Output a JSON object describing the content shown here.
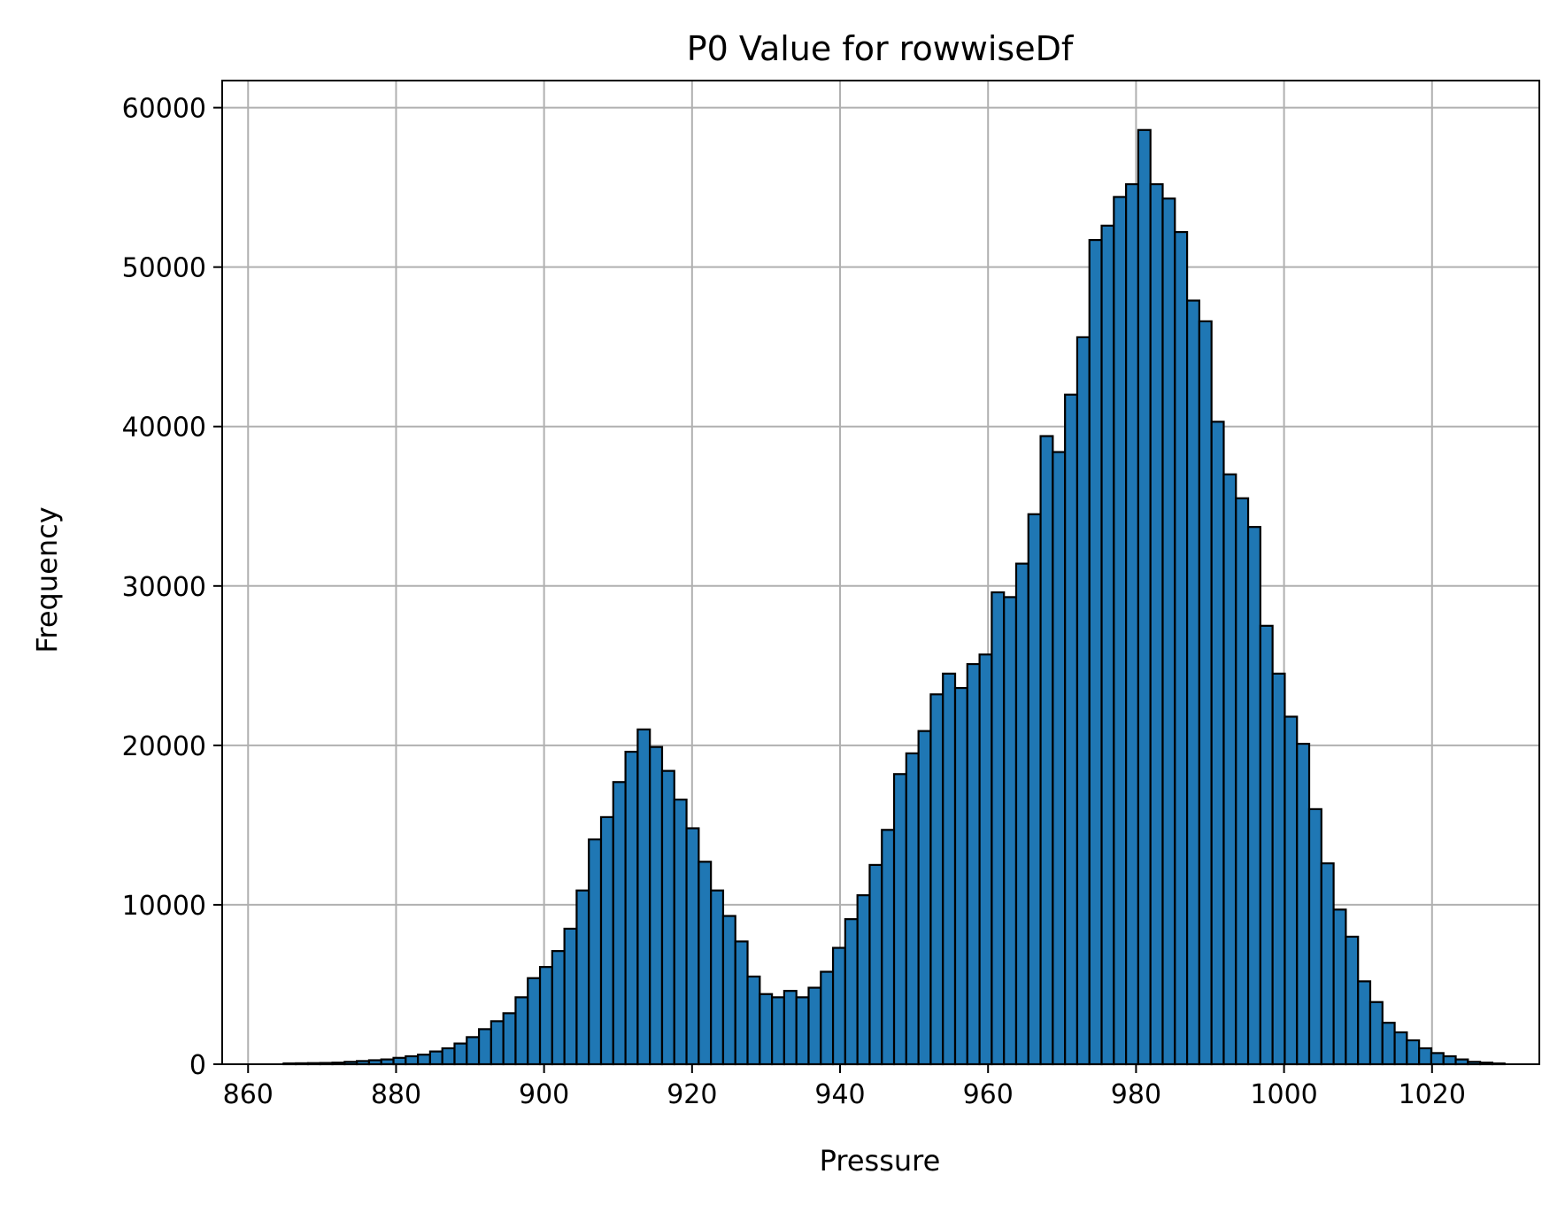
{
  "chart_data": {
    "type": "bar",
    "title": "P0 Value for rowwiseDf",
    "xlabel": "Pressure",
    "ylabel": "Frequency",
    "xlim": [
      856.5,
      1034.5
    ],
    "ylim": [
      0,
      61700
    ],
    "xticks": [
      860,
      880,
      900,
      920,
      940,
      960,
      980,
      1000,
      1020
    ],
    "yticks": [
      0,
      10000,
      20000,
      30000,
      40000,
      50000,
      60000
    ],
    "grid": true,
    "bar_color": "#1f77b4",
    "edge_color": "#000000",
    "bin_start": 864.8,
    "bin_width": 1.65,
    "values": [
      50,
      60,
      70,
      80,
      100,
      150,
      200,
      250,
      300,
      400,
      500,
      600,
      800,
      1000,
      1300,
      1700,
      2200,
      2700,
      3200,
      4200,
      5400,
      6100,
      7100,
      8500,
      10900,
      14100,
      15500,
      17700,
      19600,
      21000,
      19900,
      18400,
      16600,
      14800,
      12700,
      10900,
      9300,
      7700,
      5500,
      4400,
      4200,
      4600,
      4200,
      4800,
      5800,
      7300,
      9100,
      10600,
      12500,
      14700,
      18200,
      19500,
      20900,
      23200,
      24500,
      23600,
      25100,
      25700,
      29600,
      29300,
      31400,
      34500,
      39400,
      38400,
      42000,
      45600,
      51700,
      52600,
      54400,
      55200,
      58600,
      55200,
      54300,
      52200,
      47900,
      46600,
      40300,
      37000,
      35500,
      33700,
      27500,
      24500,
      21800,
      20100,
      16000,
      12600,
      9700,
      8000,
      5200,
      3900,
      2600,
      2000,
      1500,
      1000,
      700,
      500,
      300,
      150,
      100,
      50
    ]
  }
}
